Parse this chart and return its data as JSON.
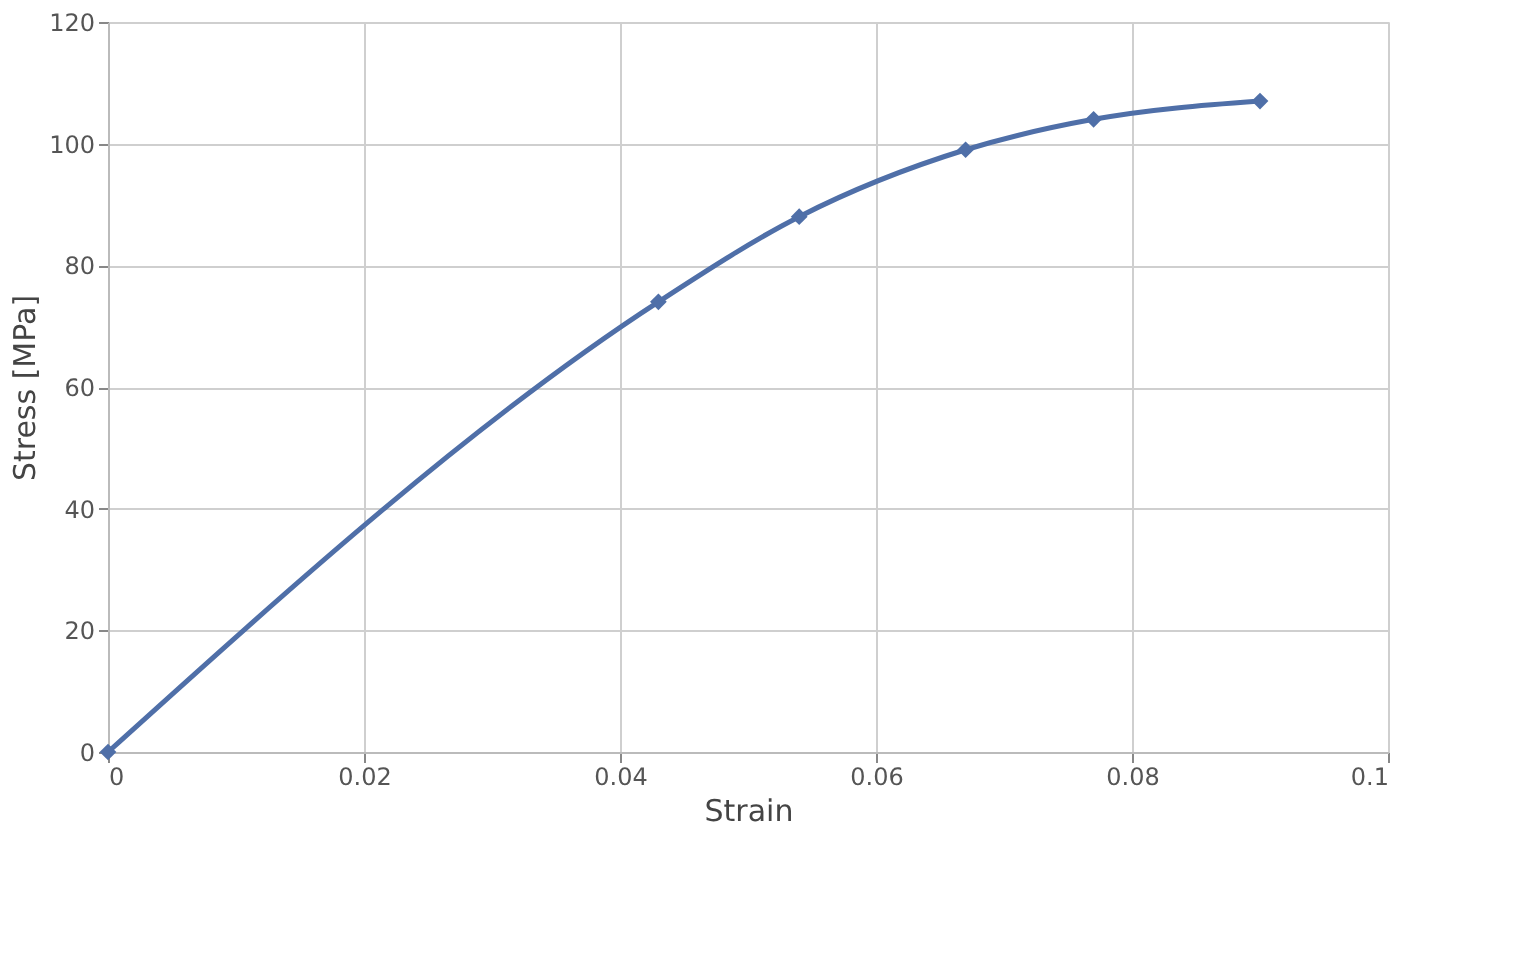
{
  "chart_data": {
    "type": "line",
    "xlabel": "Strain",
    "ylabel": "Stress [MPa]",
    "x": [
      0,
      0.043,
      0.054,
      0.067,
      0.077,
      0.09
    ],
    "series": [
      {
        "color": "#4f6fa8",
        "values": [
          0,
          74,
          88,
          99,
          104,
          107
        ]
      }
    ],
    "xlim": [
      0,
      0.1
    ],
    "xticks": [
      0,
      0.02,
      0.04,
      0.06,
      0.08,
      0.1
    ],
    "ylim": [
      0,
      120
    ],
    "yticks": [
      0,
      20,
      40,
      60,
      80,
      100,
      120
    ],
    "grid": true,
    "marker": "diamond",
    "line_style": "solid"
  }
}
